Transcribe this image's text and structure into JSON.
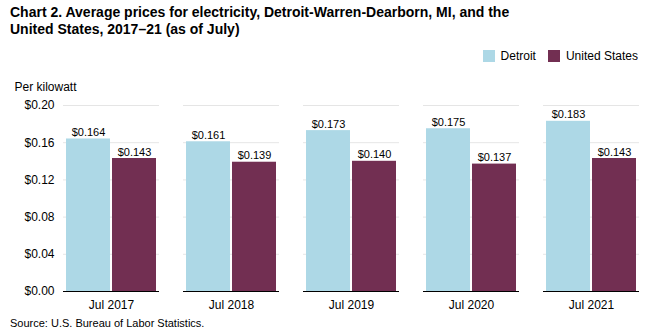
{
  "chart_data": {
    "type": "bar",
    "title": "Chart 2. Average prices for electricity, Detroit-Warren-Dearborn, MI, and the\nUnited States, 2017–21 (as of July)",
    "ylabel": "Per kilowatt",
    "source": "Source:  U.S. Bureau of Labor Statistics.",
    "categories": [
      "Jul 2017",
      "Jul 2018",
      "Jul 2019",
      "Jul 2020",
      "Jul 2021"
    ],
    "series": [
      {
        "name": "Detroit",
        "color": "#add8e6",
        "values": [
          0.164,
          0.161,
          0.173,
          0.175,
          0.183
        ],
        "value_labels": [
          "$0.164",
          "$0.161",
          "$0.173",
          "$0.175",
          "$0.183"
        ]
      },
      {
        "name": "United States",
        "color": "#722F52",
        "values": [
          0.143,
          0.139,
          0.14,
          0.137,
          0.143
        ],
        "value_labels": [
          "$0.143",
          "$0.139",
          "$0.140",
          "$0.137",
          "$0.143"
        ]
      }
    ],
    "ylim": [
      0,
      0.2
    ],
    "yticks": [
      {
        "value": 0.0,
        "label": "$0.00"
      },
      {
        "value": 0.04,
        "label": "$0.04"
      },
      {
        "value": 0.08,
        "label": "$0.08"
      },
      {
        "value": 0.12,
        "label": "$0.12"
      },
      {
        "value": 0.16,
        "label": "$0.16"
      },
      {
        "value": 0.2,
        "label": "$0.20"
      }
    ],
    "grid": true,
    "legend": "upper right",
    "data_labels": true
  }
}
